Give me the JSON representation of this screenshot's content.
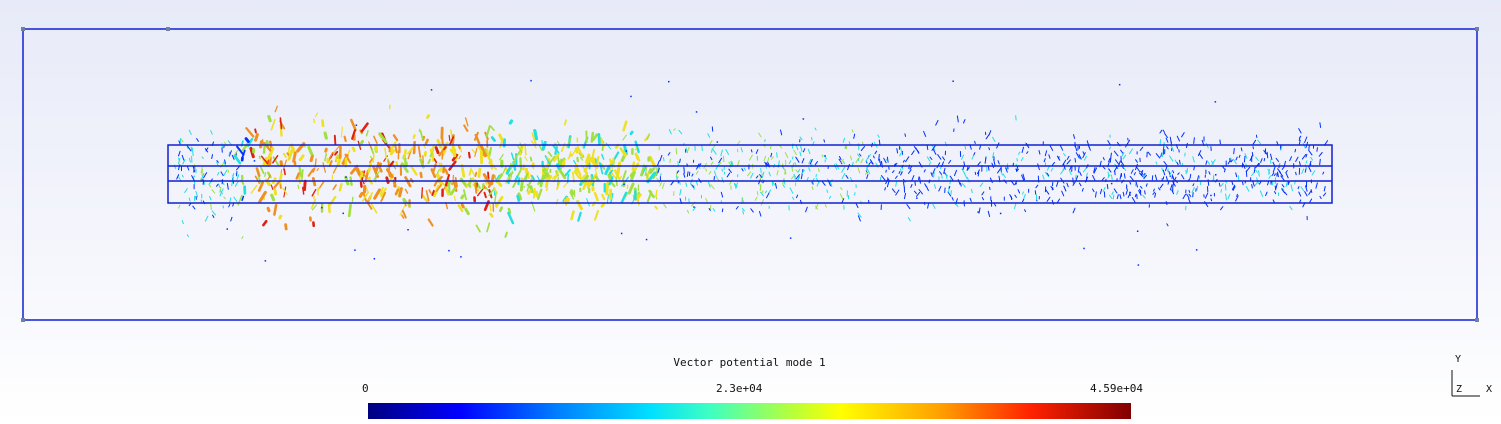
{
  "scene": {
    "colors": {
      "frame": "#1020d0",
      "low": "#0030ff",
      "cyan": "#20e0e0",
      "green": "#a0e040",
      "yellow": "#f0e020",
      "orange": "#f09020",
      "red": "#e02010"
    }
  },
  "colorbar": {
    "title": "Vector potential mode 1",
    "min_label": "0",
    "mid_label": "2.3e+04",
    "max_label": "4.59e+04"
  },
  "axes": {
    "y": "Y",
    "z": "Z",
    "x": "X"
  }
}
